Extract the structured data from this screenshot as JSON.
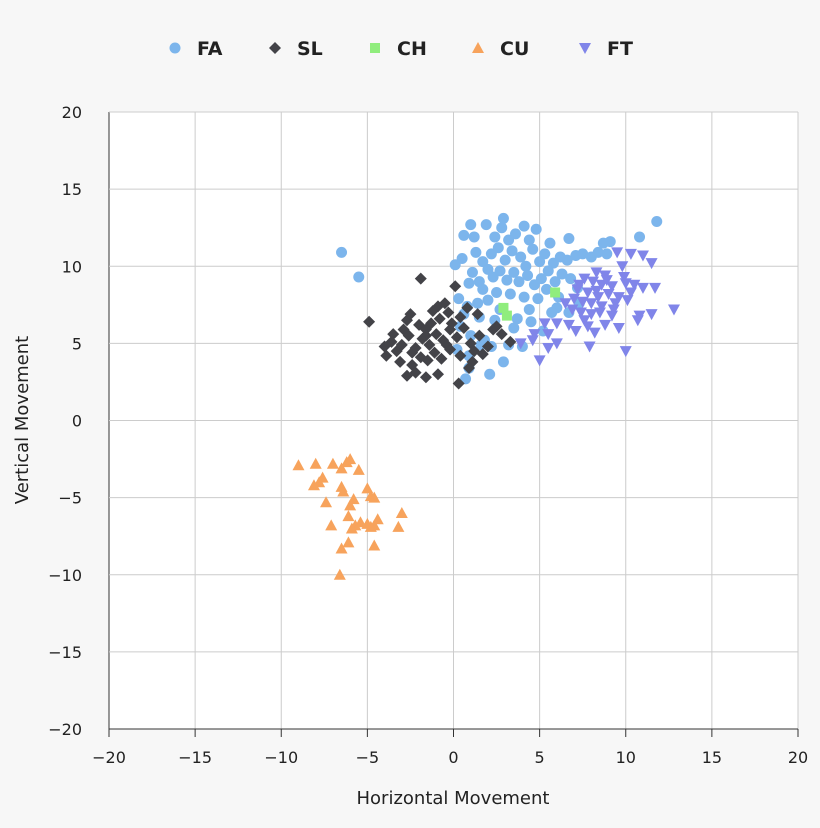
{
  "chart_data": {
    "type": "scatter",
    "xlabel": "Horizontal Movement",
    "ylabel": "Vertical Movement",
    "xlim": [
      -20,
      20
    ],
    "ylim": [
      -20,
      20
    ],
    "xticks": [
      "−20",
      "−15",
      "−10",
      "−5",
      "0",
      "5",
      "10",
      "15",
      "20"
    ],
    "yticks": [
      "20",
      "15",
      "10",
      "5",
      "0",
      "−5",
      "−10",
      "−15",
      "−20"
    ],
    "grid": true,
    "legend_position": "top",
    "series": [
      {
        "name": "FA",
        "marker": "circle",
        "color": "#7cb5ec",
        "points": [
          [
            -6.5,
            10.9
          ],
          [
            -5.5,
            9.3
          ],
          [
            11.8,
            12.9
          ],
          [
            10.8,
            11.9
          ],
          [
            1.0,
            12.7
          ],
          [
            1.9,
            12.7
          ],
          [
            2.9,
            13.1
          ],
          [
            2.8,
            12.5
          ],
          [
            4.1,
            12.6
          ],
          [
            4.8,
            12.4
          ],
          [
            3.6,
            12.1
          ],
          [
            0.6,
            12.0
          ],
          [
            1.2,
            11.9
          ],
          [
            2.4,
            11.9
          ],
          [
            3.2,
            11.7
          ],
          [
            4.4,
            11.7
          ],
          [
            5.6,
            11.5
          ],
          [
            6.7,
            11.8
          ],
          [
            8.7,
            11.5
          ],
          [
            9.1,
            11.6
          ],
          [
            0.1,
            10.1
          ],
          [
            0.5,
            10.5
          ],
          [
            1.3,
            10.9
          ],
          [
            1.7,
            10.3
          ],
          [
            2.2,
            10.8
          ],
          [
            2.6,
            11.2
          ],
          [
            3.0,
            10.4
          ],
          [
            3.4,
            11.0
          ],
          [
            3.9,
            10.6
          ],
          [
            4.2,
            10.0
          ],
          [
            4.6,
            11.1
          ],
          [
            5.0,
            10.3
          ],
          [
            5.3,
            10.8
          ],
          [
            5.8,
            10.2
          ],
          [
            6.2,
            10.6
          ],
          [
            6.6,
            10.4
          ],
          [
            7.1,
            10.7
          ],
          [
            7.5,
            10.8
          ],
          [
            8.0,
            10.6
          ],
          [
            8.4,
            10.9
          ],
          [
            8.9,
            10.8
          ],
          [
            1.1,
            9.6
          ],
          [
            1.5,
            9.0
          ],
          [
            2.0,
            9.8
          ],
          [
            2.3,
            9.3
          ],
          [
            2.7,
            9.7
          ],
          [
            3.1,
            9.1
          ],
          [
            3.5,
            9.6
          ],
          [
            3.8,
            9.0
          ],
          [
            4.3,
            9.4
          ],
          [
            4.7,
            8.8
          ],
          [
            5.1,
            9.2
          ],
          [
            5.5,
            9.7
          ],
          [
            5.9,
            9.0
          ],
          [
            6.3,
            9.5
          ],
          [
            6.8,
            9.2
          ],
          [
            7.2,
            8.6
          ],
          [
            0.9,
            8.9
          ],
          [
            1.7,
            8.5
          ],
          [
            2.5,
            8.3
          ],
          [
            3.3,
            8.2
          ],
          [
            4.1,
            8.0
          ],
          [
            4.9,
            7.9
          ],
          [
            5.4,
            8.5
          ],
          [
            6.1,
            8.0
          ],
          [
            0.3,
            7.9
          ],
          [
            0.8,
            7.4
          ],
          [
            1.4,
            7.6
          ],
          [
            2.0,
            7.8
          ],
          [
            2.7,
            7.2
          ],
          [
            0.6,
            6.9
          ],
          [
            1.5,
            6.7
          ],
          [
            2.4,
            6.5
          ],
          [
            3.7,
            6.6
          ],
          [
            3.5,
            6.0
          ],
          [
            4.5,
            6.4
          ],
          [
            5.2,
            5.8
          ],
          [
            0.4,
            6.1
          ],
          [
            1.0,
            5.5
          ],
          [
            1.8,
            5.2
          ],
          [
            0.2,
            4.6
          ],
          [
            0.9,
            4.2
          ],
          [
            1.6,
            4.9
          ],
          [
            2.2,
            4.8
          ],
          [
            3.2,
            4.9
          ],
          [
            4.0,
            4.8
          ],
          [
            2.9,
            3.8
          ],
          [
            2.1,
            3.0
          ],
          [
            0.7,
            2.7
          ],
          [
            0.9,
            3.4
          ],
          [
            6.0,
            7.3
          ],
          [
            6.7,
            7.0
          ],
          [
            7.3,
            7.6
          ],
          [
            5.7,
            7.0
          ],
          [
            4.4,
            7.2
          ]
        ]
      },
      {
        "name": "SL",
        "marker": "diamond",
        "color": "#434348",
        "points": [
          [
            -1.9,
            9.2
          ],
          [
            -4.9,
            6.4
          ],
          [
            -2.7,
            6.5
          ],
          [
            -2.5,
            6.9
          ],
          [
            -2.0,
            6.2
          ],
          [
            -1.6,
            5.9
          ],
          [
            -1.2,
            7.1
          ],
          [
            -0.9,
            7.4
          ],
          [
            -0.5,
            7.6
          ],
          [
            -0.3,
            7.0
          ],
          [
            0.1,
            8.7
          ],
          [
            0.8,
            7.3
          ],
          [
            1.4,
            6.9
          ],
          [
            2.5,
            6.1
          ],
          [
            2.8,
            5.6
          ],
          [
            3.3,
            5.1
          ],
          [
            -3.6,
            5.1
          ],
          [
            -3.3,
            4.5
          ],
          [
            -3.0,
            4.9
          ],
          [
            -2.6,
            5.5
          ],
          [
            -2.2,
            4.7
          ],
          [
            -1.8,
            5.3
          ],
          [
            -1.4,
            4.9
          ],
          [
            -1.0,
            5.6
          ],
          [
            -0.6,
            5.2
          ],
          [
            -0.2,
            5.9
          ],
          [
            0.2,
            5.4
          ],
          [
            0.6,
            6.0
          ],
          [
            1.0,
            5.0
          ],
          [
            1.5,
            5.5
          ],
          [
            2.0,
            4.8
          ],
          [
            -3.9,
            4.2
          ],
          [
            -3.1,
            3.8
          ],
          [
            -2.4,
            3.6
          ],
          [
            -1.9,
            4.1
          ],
          [
            -1.5,
            3.9
          ],
          [
            -1.1,
            4.4
          ],
          [
            -0.7,
            4.0
          ],
          [
            -0.2,
            4.6
          ],
          [
            0.4,
            4.2
          ],
          [
            1.1,
            3.8
          ],
          [
            1.7,
            4.3
          ],
          [
            -2.7,
            2.9
          ],
          [
            -2.2,
            3.1
          ],
          [
            -1.6,
            2.8
          ],
          [
            -0.9,
            3.0
          ],
          [
            0.3,
            2.4
          ],
          [
            0.9,
            3.4
          ],
          [
            -2.4,
            4.4
          ],
          [
            -1.3,
            6.3
          ],
          [
            -0.8,
            6.6
          ],
          [
            -0.1,
            6.3
          ],
          [
            0.4,
            6.7
          ],
          [
            -2.9,
            5.9
          ],
          [
            -4.0,
            4.8
          ],
          [
            -1.6,
            5.5
          ],
          [
            -0.4,
            4.9
          ],
          [
            1.2,
            4.5
          ],
          [
            2.3,
            5.9
          ],
          [
            -3.5,
            5.6
          ]
        ]
      },
      {
        "name": "CH",
        "marker": "square",
        "color": "#90ed7d",
        "points": [
          [
            2.9,
            7.3
          ],
          [
            3.1,
            6.8
          ],
          [
            5.9,
            8.3
          ]
        ]
      },
      {
        "name": "CU",
        "marker": "triangle",
        "color": "#f7a35c",
        "points": [
          [
            -9.0,
            -2.9
          ],
          [
            -8.0,
            -2.8
          ],
          [
            -7.0,
            -2.8
          ],
          [
            -6.5,
            -3.1
          ],
          [
            -6.0,
            -2.5
          ],
          [
            -6.2,
            -2.7
          ],
          [
            -5.5,
            -3.2
          ],
          [
            -7.8,
            -4.0
          ],
          [
            -7.6,
            -3.7
          ],
          [
            -8.1,
            -4.2
          ],
          [
            -6.5,
            -4.3
          ],
          [
            -6.4,
            -4.6
          ],
          [
            -5.0,
            -4.4
          ],
          [
            -4.8,
            -4.9
          ],
          [
            -4.6,
            -5.0
          ],
          [
            -7.4,
            -5.3
          ],
          [
            -6.0,
            -5.5
          ],
          [
            -5.8,
            -5.1
          ],
          [
            -6.1,
            -6.2
          ],
          [
            -5.7,
            -6.8
          ],
          [
            -5.4,
            -6.6
          ],
          [
            -5.0,
            -6.7
          ],
          [
            -4.6,
            -6.8
          ],
          [
            -4.8,
            -6.9
          ],
          [
            -4.4,
            -6.4
          ],
          [
            -3.2,
            -6.9
          ],
          [
            -3.0,
            -6.0
          ],
          [
            -7.1,
            -6.8
          ],
          [
            -5.9,
            -7.0
          ],
          [
            -6.1,
            -7.9
          ],
          [
            -6.5,
            -8.3
          ],
          [
            -4.6,
            -8.1
          ],
          [
            -6.6,
            -10.0
          ]
        ]
      },
      {
        "name": "FT",
        "marker": "triangle-down",
        "color": "#8085e9",
        "points": [
          [
            9.5,
            10.9
          ],
          [
            10.3,
            10.8
          ],
          [
            11.0,
            10.7
          ],
          [
            11.5,
            10.2
          ],
          [
            9.8,
            10.0
          ],
          [
            8.3,
            9.6
          ],
          [
            8.8,
            9.4
          ],
          [
            9.9,
            9.3
          ],
          [
            7.6,
            9.2
          ],
          [
            8.1,
            9.0
          ],
          [
            8.6,
            8.8
          ],
          [
            9.2,
            8.7
          ],
          [
            10.0,
            8.9
          ],
          [
            10.5,
            8.8
          ],
          [
            11.0,
            8.6
          ],
          [
            11.7,
            8.6
          ],
          [
            7.2,
            8.5
          ],
          [
            7.8,
            8.3
          ],
          [
            8.3,
            8.4
          ],
          [
            9.0,
            8.2
          ],
          [
            9.6,
            8.0
          ],
          [
            10.3,
            8.3
          ],
          [
            7.0,
            7.9
          ],
          [
            7.5,
            7.7
          ],
          [
            8.0,
            7.6
          ],
          [
            8.6,
            7.4
          ],
          [
            6.5,
            7.6
          ],
          [
            6.9,
            7.2
          ],
          [
            7.4,
            7.0
          ],
          [
            8.0,
            6.9
          ],
          [
            8.5,
            7.0
          ],
          [
            9.3,
            7.2
          ],
          [
            10.1,
            7.8
          ],
          [
            10.8,
            6.8
          ],
          [
            12.8,
            7.2
          ],
          [
            11.5,
            6.9
          ],
          [
            10.7,
            6.5
          ],
          [
            7.6,
            6.5
          ],
          [
            8.8,
            6.2
          ],
          [
            9.6,
            6.0
          ],
          [
            6.0,
            6.3
          ],
          [
            6.7,
            6.2
          ],
          [
            5.3,
            6.3
          ],
          [
            7.1,
            5.8
          ],
          [
            8.2,
            5.7
          ],
          [
            4.7,
            5.6
          ],
          [
            5.5,
            5.6
          ],
          [
            6.0,
            5.0
          ],
          [
            3.9,
            5.0
          ],
          [
            4.6,
            5.2
          ],
          [
            5.5,
            4.7
          ],
          [
            7.9,
            4.8
          ],
          [
            10.0,
            4.5
          ],
          [
            5.0,
            3.9
          ],
          [
            8.4,
            8.0
          ],
          [
            9.4,
            7.6
          ],
          [
            7.3,
            8.8
          ],
          [
            8.9,
            9.1
          ],
          [
            9.2,
            6.8
          ],
          [
            7.8,
            6.1
          ]
        ]
      }
    ]
  }
}
